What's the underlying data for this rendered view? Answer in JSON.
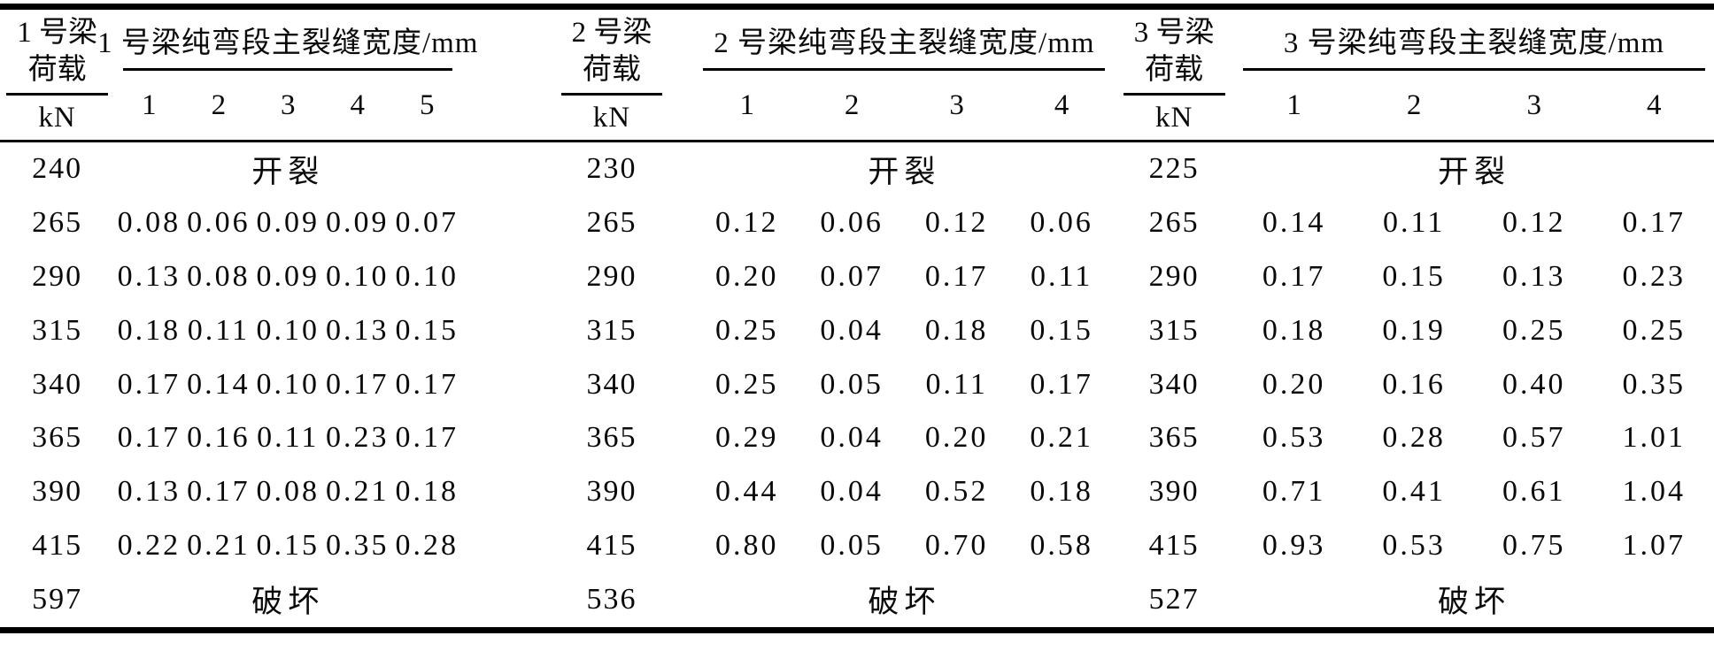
{
  "table": {
    "unit_label": "kN",
    "cracking_label": "开裂",
    "failure_label": "破坏",
    "sections": [
      {
        "load_header": [
          "1 号梁",
          "荷载"
        ],
        "group_header": "1 号梁纯弯段主裂缝宽度/mm",
        "crack_columns": [
          "1",
          "2",
          "3",
          "4",
          "5"
        ],
        "rows": [
          {
            "load": "240",
            "label": "开裂"
          },
          {
            "load": "265",
            "values": [
              "0.08",
              "0.06",
              "0.09",
              "0.09",
              "0.07"
            ]
          },
          {
            "load": "290",
            "values": [
              "0.13",
              "0.08",
              "0.09",
              "0.10",
              "0.10"
            ]
          },
          {
            "load": "315",
            "values": [
              "0.18",
              "0.11",
              "0.10",
              "0.13",
              "0.15"
            ]
          },
          {
            "load": "340",
            "values": [
              "0.17",
              "0.14",
              "0.10",
              "0.17",
              "0.17"
            ]
          },
          {
            "load": "365",
            "values": [
              "0.17",
              "0.16",
              "0.11",
              "0.23",
              "0.17"
            ]
          },
          {
            "load": "390",
            "values": [
              "0.13",
              "0.17",
              "0.08",
              "0.21",
              "0.18"
            ]
          },
          {
            "load": "415",
            "values": [
              "0.22",
              "0.21",
              "0.15",
              "0.35",
              "0.28"
            ]
          },
          {
            "load": "597",
            "label": "破坏"
          }
        ]
      },
      {
        "load_header": [
          "2 号梁",
          "荷载"
        ],
        "group_header": "2 号梁纯弯段主裂缝宽度/mm",
        "crack_columns": [
          "1",
          "2",
          "3",
          "4"
        ],
        "rows": [
          {
            "load": "230",
            "label": "开裂"
          },
          {
            "load": "265",
            "values": [
              "0.12",
              "0.06",
              "0.12",
              "0.06"
            ]
          },
          {
            "load": "290",
            "values": [
              "0.20",
              "0.07",
              "0.17",
              "0.11"
            ]
          },
          {
            "load": "315",
            "values": [
              "0.25",
              "0.04",
              "0.18",
              "0.15"
            ]
          },
          {
            "load": "340",
            "values": [
              "0.25",
              "0.05",
              "0.11",
              "0.17"
            ]
          },
          {
            "load": "365",
            "values": [
              "0.29",
              "0.04",
              "0.20",
              "0.21"
            ]
          },
          {
            "load": "390",
            "values": [
              "0.44",
              "0.04",
              "0.52",
              "0.18"
            ]
          },
          {
            "load": "415",
            "values": [
              "0.80",
              "0.05",
              "0.70",
              "0.58"
            ]
          },
          {
            "load": "536",
            "label": "破坏"
          }
        ]
      },
      {
        "load_header": [
          "3 号梁",
          "荷载"
        ],
        "group_header": "3 号梁纯弯段主裂缝宽度/mm",
        "crack_columns": [
          "1",
          "2",
          "3",
          "4"
        ],
        "rows": [
          {
            "load": "225",
            "label": "开裂"
          },
          {
            "load": "265",
            "values": [
              "0.14",
              "0.11",
              "0.12",
              "0.17"
            ]
          },
          {
            "load": "290",
            "values": [
              "0.17",
              "0.15",
              "0.13",
              "0.23"
            ]
          },
          {
            "load": "315",
            "values": [
              "0.18",
              "0.19",
              "0.25",
              "0.25"
            ]
          },
          {
            "load": "340",
            "values": [
              "0.20",
              "0.16",
              "0.40",
              "0.35"
            ]
          },
          {
            "load": "365",
            "values": [
              "0.53",
              "0.28",
              "0.57",
              "1.01"
            ]
          },
          {
            "load": "390",
            "values": [
              "0.71",
              "0.41",
              "0.61",
              "1.04"
            ]
          },
          {
            "load": "415",
            "values": [
              "0.93",
              "0.53",
              "0.75",
              "1.07"
            ]
          },
          {
            "load": "527",
            "label": "破坏"
          }
        ]
      }
    ]
  }
}
